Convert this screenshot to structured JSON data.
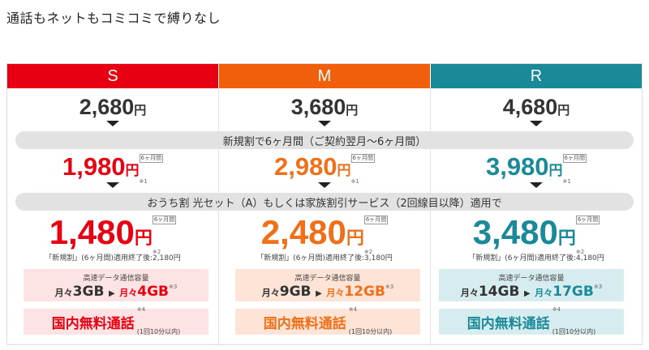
{
  "page": {
    "title": "通話もネットもコミコミで縛りなし"
  },
  "bands": {
    "new_discount": "新規割で6ヶ月間（ご契約翌月〜6ヶ月間）",
    "home_discount": "おうち割 光セット（A）もしくは家族割引サービス（2回線目以降）適用で"
  },
  "colors": {
    "s_header": "#e60012",
    "m_header": "#f25f0c",
    "r_header": "#1a8a99",
    "s_price": "#e60012",
    "m_price": "#f07019",
    "r_price": "#1a8a99",
    "s_box": "#fde3e3",
    "m_box": "#fde4d6",
    "r_box": "#d7ecee"
  },
  "plans": [
    {
      "name": "S",
      "base_price": "2,680",
      "yen": "円",
      "new_price": "1,980",
      "new_tag": "6ヶ月間",
      "new_note": "※1",
      "home_price": "1,480",
      "home_tag": "6ヶ月間",
      "home_note": "※2",
      "after_note": "「新規割」(6ヶ月間)適用終了後:2,180円",
      "data_title": "高速データ通信容量",
      "data_prefix1": "月々",
      "data_from": "3GB",
      "data_prefix2": "月々",
      "data_to": "4GB",
      "data_note": "※3",
      "call_label": "国内無料通話",
      "call_note": "※4",
      "call_limit": "(1回10分以内)"
    },
    {
      "name": "M",
      "base_price": "3,680",
      "yen": "円",
      "new_price": "2,980",
      "new_tag": "6ヶ月間",
      "new_note": "※1",
      "home_price": "2,480",
      "home_tag": "6ヶ月間",
      "home_note": "※2",
      "after_note": "「新規割」(6ヶ月間)適用終了後:3,180円",
      "data_title": "高速データ通信容量",
      "data_prefix1": "月々",
      "data_from": "9GB",
      "data_prefix2": "月々",
      "data_to": "12GB",
      "data_note": "※3",
      "call_label": "国内無料通話",
      "call_note": "※4",
      "call_limit": "(1回10分以内)"
    },
    {
      "name": "R",
      "base_price": "4,680",
      "yen": "円",
      "new_price": "3,980",
      "new_tag": "6ヶ月間",
      "new_note": "※1",
      "home_price": "3,480",
      "home_tag": "6ヶ月間",
      "home_note": "※2",
      "after_note": "「新規割」(6ヶ月間)適用終了後:4,180円",
      "data_title": "高速データ通信容量",
      "data_prefix1": "月々",
      "data_from": "14GB",
      "data_prefix2": "月々",
      "data_to": "17GB",
      "data_note": "※3",
      "call_label": "国内無料通話",
      "call_note": "※4",
      "call_limit": "(1回10分以内)"
    }
  ]
}
